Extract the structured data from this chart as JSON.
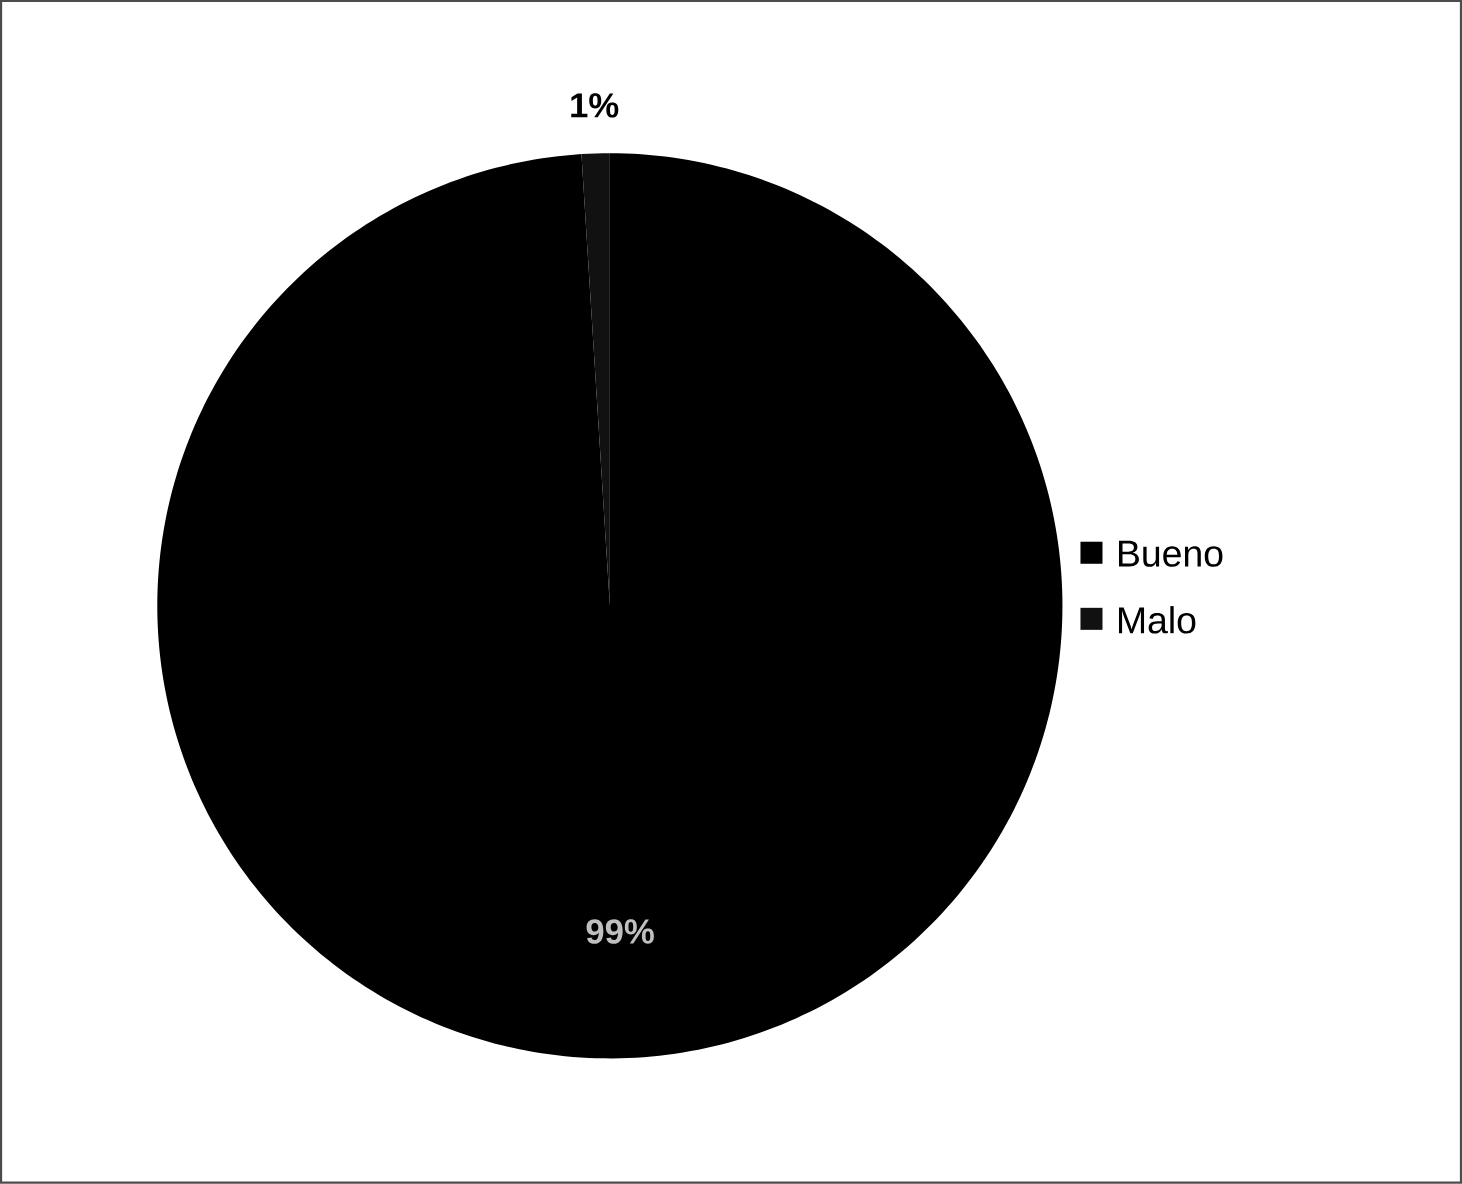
{
  "chart_data": {
    "type": "pie",
    "categories": [
      "Bueno",
      "Malo"
    ],
    "values": [
      99,
      1
    ],
    "colors": [
      "#000000",
      "#111111"
    ],
    "value_labels": [
      "99%",
      "1%"
    ],
    "legend": "right"
  }
}
